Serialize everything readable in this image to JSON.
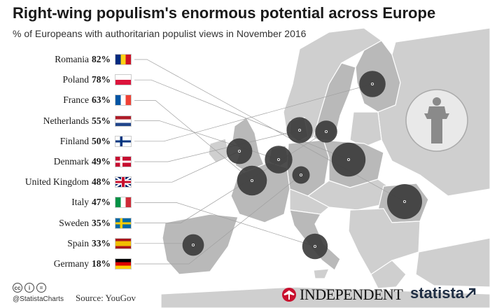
{
  "title": "Right-wing populism's enormous potential across Europe",
  "subtitle": "% of Europeans with authoritarian populist views in November 2016",
  "chart_data": {
    "type": "bubble-map",
    "countries": [
      {
        "name": "Romania",
        "value": 82,
        "label": "82%",
        "flag": [
          "#002B7F",
          "#FCD116",
          "#CE1126"
        ],
        "flag_dir": "v"
      },
      {
        "name": "Poland",
        "value": 78,
        "label": "78%",
        "flag": [
          "#ffffff",
          "#DC143C"
        ],
        "flag_dir": "h"
      },
      {
        "name": "France",
        "value": 63,
        "label": "63%",
        "flag": [
          "#0055A4",
          "#ffffff",
          "#EF4135"
        ],
        "flag_dir": "v"
      },
      {
        "name": "Netherlands",
        "value": 55,
        "label": "55%",
        "flag": [
          "#AE1C28",
          "#ffffff",
          "#21468B"
        ],
        "flag_dir": "h"
      },
      {
        "name": "Finland",
        "value": 50,
        "label": "50%",
        "flag": [
          "#ffffff",
          "#003580"
        ],
        "flag_dir": "nordic"
      },
      {
        "name": "Denmark",
        "value": 49,
        "label": "49%",
        "flag": [
          "#C60C30",
          "#ffffff"
        ],
        "flag_dir": "nordic"
      },
      {
        "name": "United Kingdom",
        "value": 48,
        "label": "48%",
        "flag": [
          "#012169",
          "#ffffff",
          "#C8102E"
        ],
        "flag_dir": "uk"
      },
      {
        "name": "Italy",
        "value": 47,
        "label": "47%",
        "flag": [
          "#009246",
          "#ffffff",
          "#CE2B37"
        ],
        "flag_dir": "v"
      },
      {
        "name": "Sweden",
        "value": 35,
        "label": "35%",
        "flag": [
          "#006AA7",
          "#FECC00"
        ],
        "flag_dir": "nordic"
      },
      {
        "name": "Spain",
        "value": 33,
        "label": "33%",
        "flag": [
          "#AA151B",
          "#F1BF00",
          "#AA151B"
        ],
        "flag_dir": "spain"
      },
      {
        "name": "Germany",
        "value": 18,
        "label": "18%",
        "flag": [
          "#000000",
          "#DD0000",
          "#FFCE00"
        ],
        "flag_dir": "h"
      }
    ],
    "colors": {
      "bubble": "#3a3a3a",
      "land": "#c9c9c9",
      "land_highlight": "#b3b3b3",
      "leader": "#9a9a9a"
    }
  },
  "footer": {
    "handle": "@StatistaCharts",
    "source": "Source: YouGov",
    "independent_logo": "INDEPENDENT",
    "statista_logo": "statista",
    "icons": [
      "cc-icon",
      "by-icon",
      "nd-icon"
    ]
  }
}
